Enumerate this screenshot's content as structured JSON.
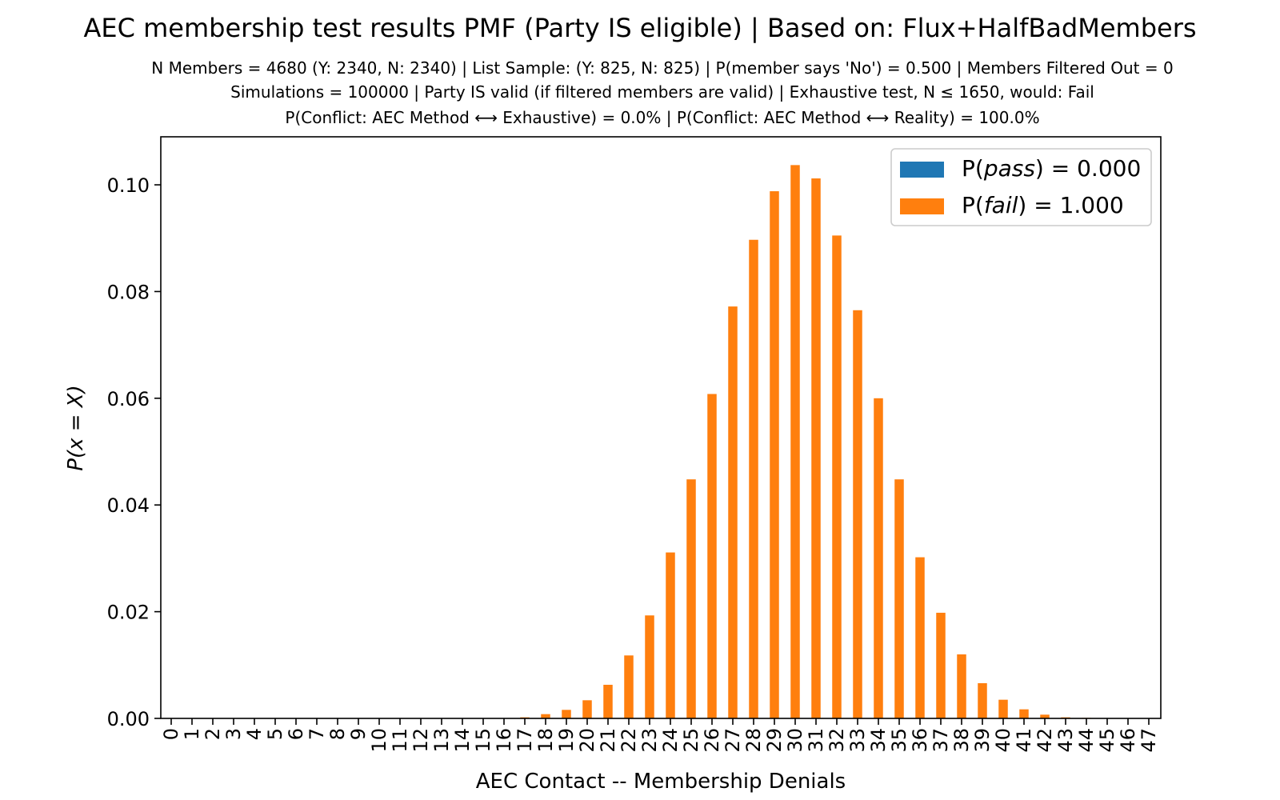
{
  "chart_data": {
    "type": "bar",
    "title": "AEC membership test results PMF (Party IS eligible) | Based on: Flux+HalfBadMembers",
    "subtitle_lines": [
      "N Members = 4680 (Y: 2340, N: 2340) | List Sample: (Y: 825, N: 825) | P(member says 'No') = 0.500 | Members Filtered Out = 0",
      "Simulations = 100000 | Party IS valid (if filtered members are valid) | Exhaustive test, N ≤ 1650, would: Fail",
      "P(Conflict: AEC Method ⟷ Exhaustive) = 0.0% | P(Conflict: AEC Method ⟷ Reality) = 100.0%"
    ],
    "xlabel": "AEC Contact -- Membership Denials",
    "ylabel": "P(x = X)",
    "ylim": [
      0,
      0.109
    ],
    "yticks": [
      0.0,
      0.02,
      0.04,
      0.06,
      0.08,
      0.1
    ],
    "ytick_labels": [
      "0.00",
      "0.02",
      "0.04",
      "0.06",
      "0.08",
      "0.10"
    ],
    "categories": [
      "0",
      "1",
      "2",
      "3",
      "4",
      "5",
      "6",
      "7",
      "8",
      "9",
      "10",
      "11",
      "12",
      "13",
      "14",
      "15",
      "16",
      "17",
      "18",
      "19",
      "20",
      "21",
      "22",
      "23",
      "24",
      "25",
      "26",
      "27",
      "28",
      "29",
      "30",
      "31",
      "32",
      "33",
      "34",
      "35",
      "36",
      "37",
      "38",
      "39",
      "40",
      "41",
      "42",
      "43",
      "44",
      "45",
      "46",
      "47"
    ],
    "series": [
      {
        "name": "P(pass) = 0.000",
        "color": "#1f77b4",
        "values": [
          0,
          0,
          0,
          0,
          0,
          0,
          0,
          0,
          0,
          0,
          0,
          0,
          0,
          0,
          0,
          0,
          0,
          0,
          0,
          0,
          0,
          0,
          0,
          0,
          0,
          0,
          0,
          0,
          0,
          0,
          0,
          0,
          0,
          0,
          0,
          0,
          0,
          0,
          0,
          0,
          0,
          0,
          0,
          0,
          0,
          0,
          0,
          0
        ]
      },
      {
        "name": "P(fail) = 1.000",
        "color": "#ff7f0e",
        "values": [
          0,
          0,
          0,
          0,
          0,
          0,
          0,
          0,
          0,
          0,
          0,
          0,
          0,
          0,
          0,
          0,
          0,
          0.0002,
          0.0008,
          0.0016,
          0.0034,
          0.0063,
          0.0118,
          0.0193,
          0.0311,
          0.0448,
          0.0608,
          0.0772,
          0.0897,
          0.0988,
          0.1037,
          0.1012,
          0.0905,
          0.0765,
          0.06,
          0.0448,
          0.0302,
          0.0198,
          0.012,
          0.0066,
          0.0035,
          0.0017,
          0.0007,
          0.0002,
          0.0001,
          0,
          0,
          0
        ]
      }
    ],
    "grid": false,
    "legend_position": "upper right",
    "legend": {
      "pass_prefix": "P(",
      "pass_var": "pass",
      "pass_suffix": ") = 0.000",
      "fail_prefix": "P(",
      "fail_var": "fail",
      "fail_suffix": ") = 1.000"
    }
  }
}
